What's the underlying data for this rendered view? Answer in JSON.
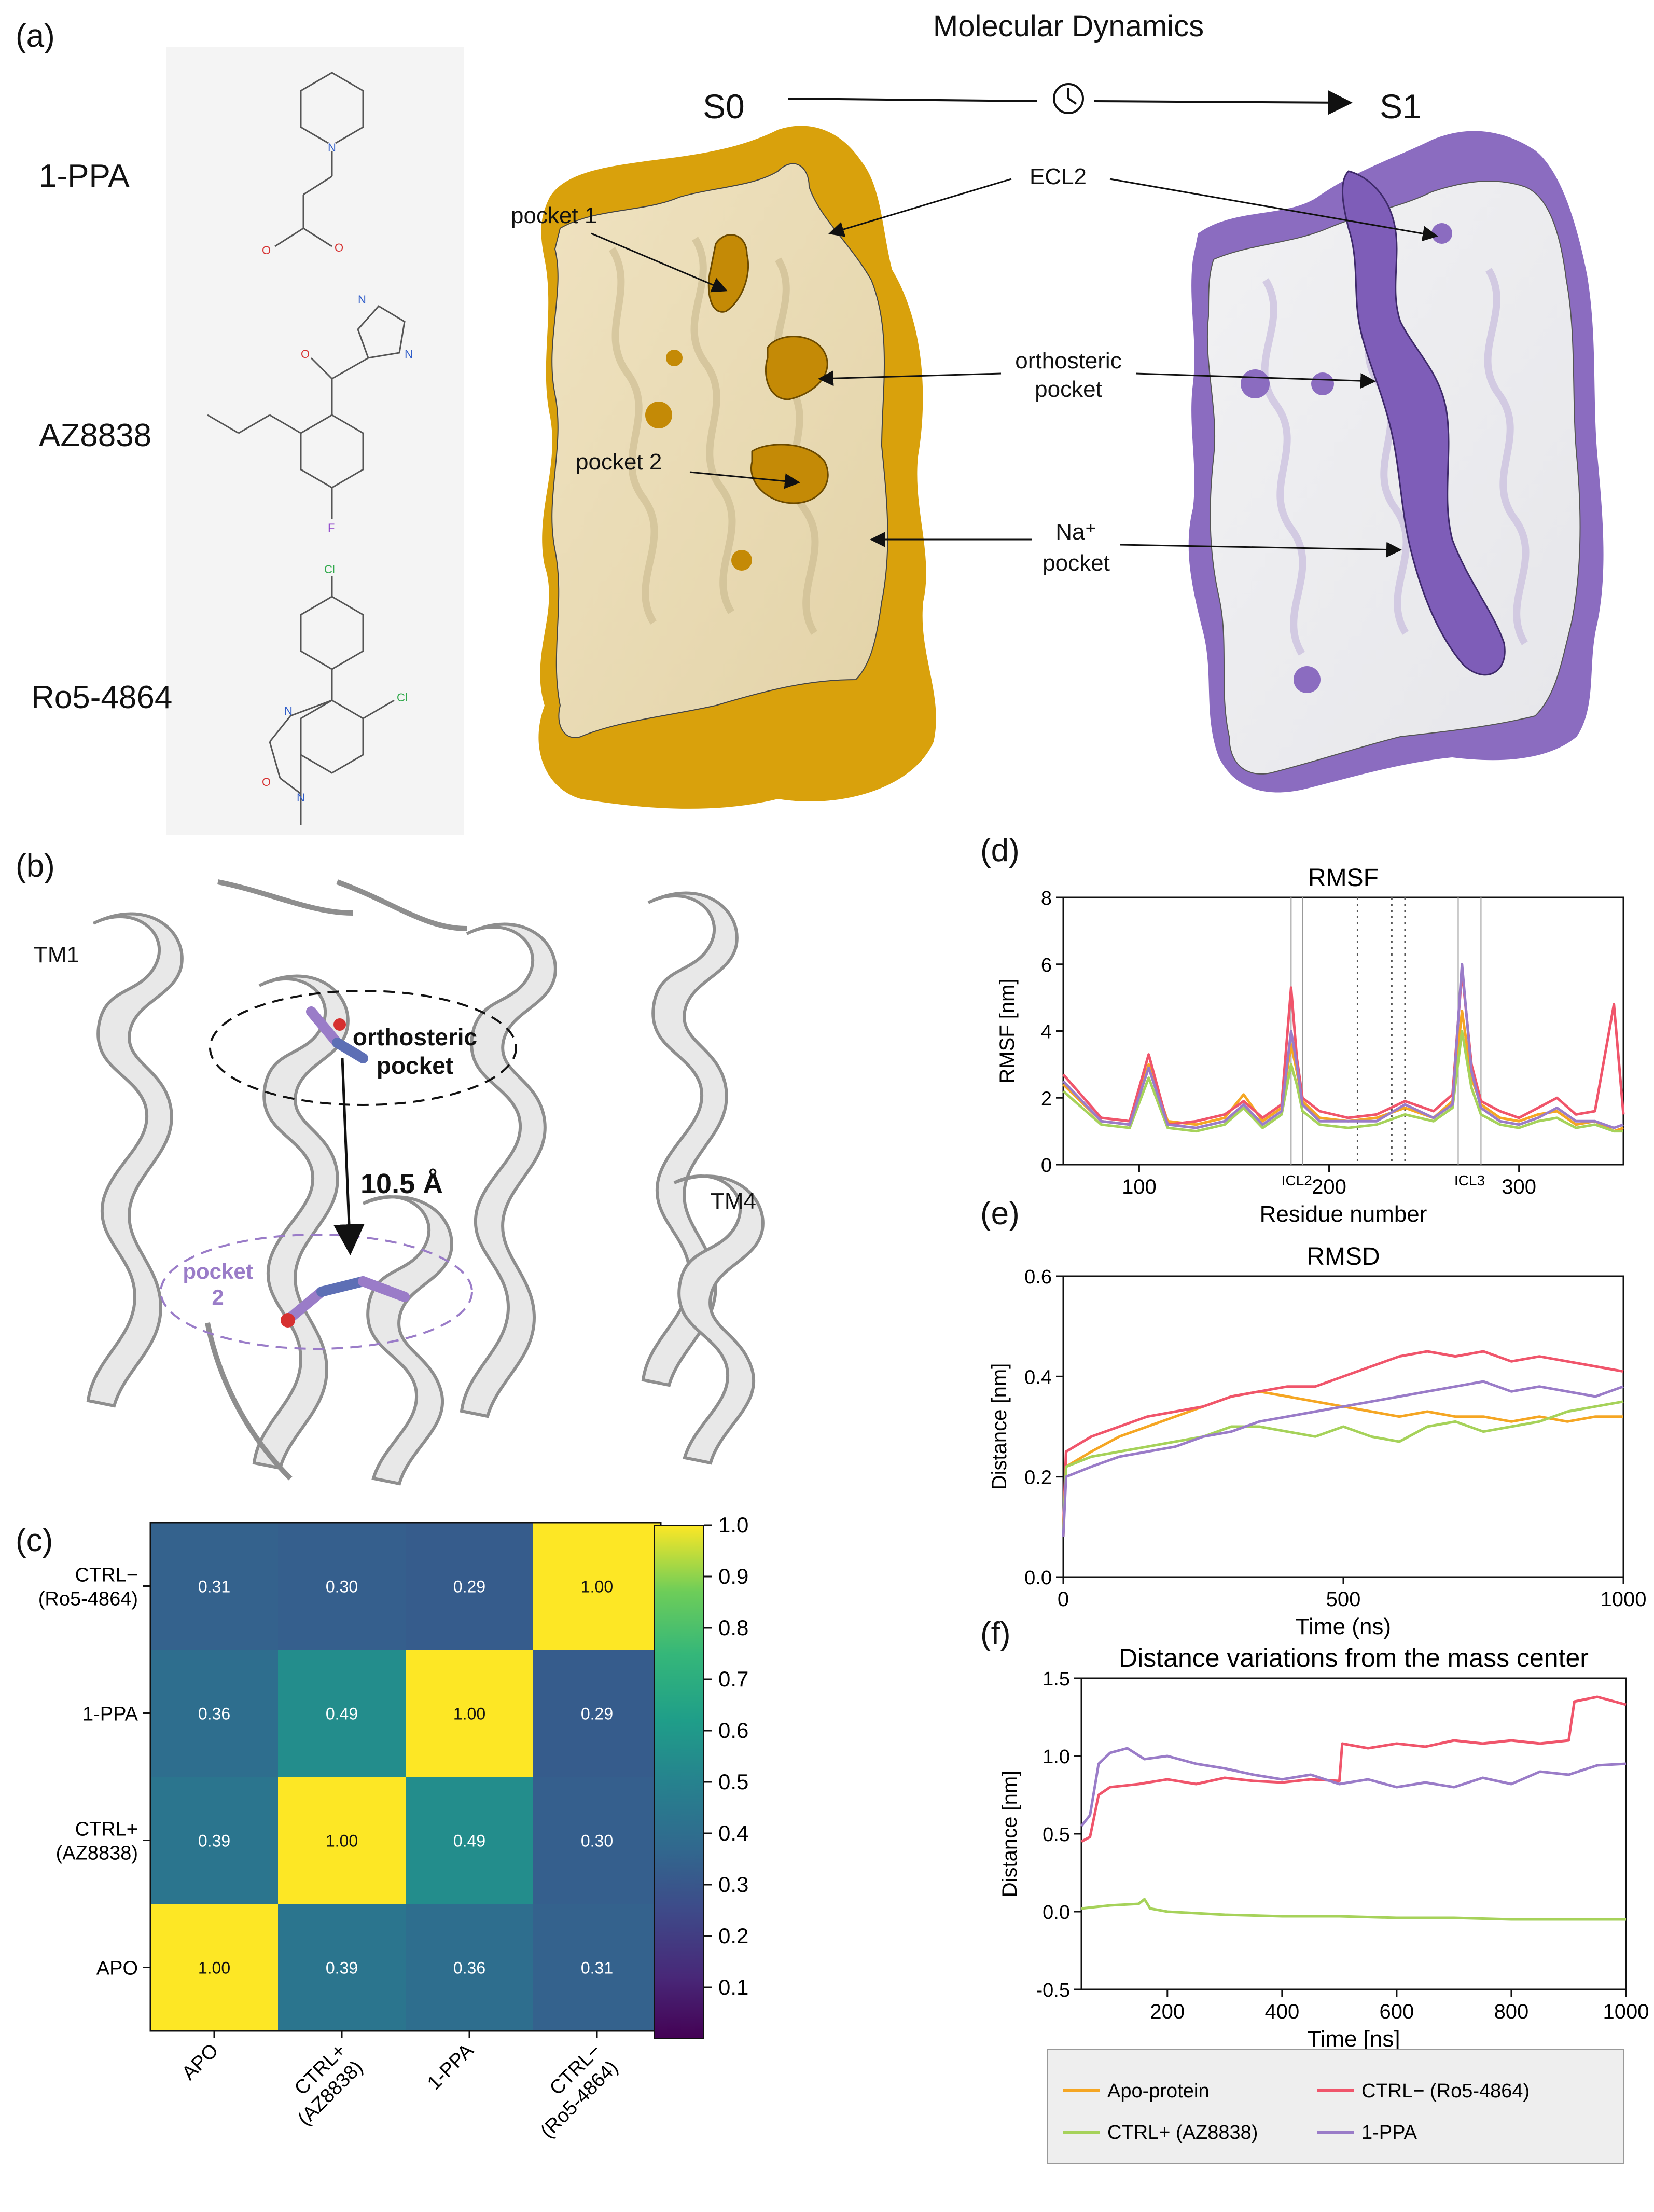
{
  "panel_a": {
    "letter": "(a)",
    "title": "Molecular Dynamics",
    "state_start": "S0",
    "state_end": "S1",
    "clock_icon": "clock-icon",
    "compounds": [
      "1-PPA",
      "AZ8838",
      "Ro5-4864"
    ],
    "s0_labels": {
      "pocket1": "pocket 1",
      "pocket2": "pocket 2"
    },
    "s1_labels": {
      "ecl2": "ECL2",
      "orthosteric": "orthosteric",
      "orthosteric2": "pocket",
      "na": "Na⁺",
      "na2": "pocket"
    },
    "colors": {
      "s0_surface": "#D9A10C",
      "s0_cut": "#EADBB5",
      "s1_surface": "#8B6CC0",
      "s1_cut": "#EDEDEF"
    }
  },
  "panel_b": {
    "letter": "(b)",
    "tm1": "TM1",
    "tm4": "TM4",
    "orthosteric_l1": "orthosteric",
    "orthosteric_l2": "pocket",
    "pocket2_l1": "pocket",
    "pocket2_l2": "2",
    "distance": "10.5 Å"
  },
  "panel_c": {
    "letter": "(c)",
    "chart_data": {
      "type": "heatmap",
      "rows": [
        "CTRL−\n(Ro5-4864)",
        "1-PPA",
        "CTRL+\n(AZ8838)",
        "APO"
      ],
      "row_labels": [
        [
          "CTRL−",
          "(Ro5-4864)"
        ],
        [
          "1-PPA"
        ],
        [
          "CTRL+",
          "(AZ8838)"
        ],
        [
          "APO"
        ]
      ],
      "col_labels": [
        [
          "APO"
        ],
        [
          "CTRL+",
          "(AZ8838)"
        ],
        [
          "1-PPA"
        ],
        [
          "CTRL−",
          "(Ro5-4864)"
        ]
      ],
      "values": [
        [
          0.31,
          0.3,
          0.29,
          1.0
        ],
        [
          0.36,
          0.49,
          1.0,
          0.29
        ],
        [
          0.39,
          1.0,
          0.49,
          0.3
        ],
        [
          1.0,
          0.39,
          0.36,
          0.31
        ]
      ],
      "colorbar_ticks": [
        "1.0",
        "0.9",
        "0.8",
        "0.7",
        "0.6",
        "0.5",
        "0.4",
        "0.3",
        "0.2",
        "0.1"
      ],
      "colormap": "viridis",
      "vmin": 0.0,
      "vmax": 1.0
    }
  },
  "panel_d": {
    "letter": "(d)",
    "chart_data": {
      "type": "line",
      "title": "RMSF",
      "xlabel": "Residue number",
      "ylabel": "RMSF [nm]",
      "xlim": [
        60,
        355
      ],
      "ylim": [
        0,
        8
      ],
      "xticks": [
        100,
        200,
        300
      ],
      "yticks": [
        0,
        2,
        4,
        6,
        8
      ],
      "annotations": [
        "ICL2",
        "ICL3"
      ],
      "solid_vlines": [
        180,
        186,
        268,
        280
      ],
      "dotted_vlines": [
        215,
        233,
        240
      ],
      "series": [
        {
          "name": "Apo-protein",
          "color": "#F5A623",
          "x": [
            60,
            80,
            95,
            105,
            115,
            130,
            145,
            155,
            165,
            175,
            180,
            183,
            186,
            195,
            210,
            225,
            240,
            255,
            265,
            270,
            275,
            280,
            290,
            300,
            310,
            320,
            330,
            340,
            350,
            355
          ],
          "y": [
            2.4,
            1.3,
            1.2,
            3.0,
            1.3,
            1.2,
            1.4,
            2.1,
            1.3,
            1.7,
            3.6,
            2.8,
            1.9,
            1.4,
            1.3,
            1.4,
            1.7,
            1.4,
            1.9,
            4.6,
            2.6,
            1.8,
            1.4,
            1.3,
            1.5,
            1.6,
            1.2,
            1.3,
            1.0,
            1.1
          ]
        },
        {
          "name": "CTRL− (Ro5-4864)",
          "color": "#F0556B",
          "x": [
            60,
            80,
            95,
            105,
            115,
            130,
            145,
            155,
            165,
            175,
            180,
            183,
            186,
            195,
            210,
            225,
            240,
            255,
            265,
            270,
            275,
            280,
            290,
            300,
            310,
            320,
            330,
            340,
            350,
            355
          ],
          "y": [
            2.7,
            1.4,
            1.3,
            3.3,
            1.2,
            1.3,
            1.5,
            1.9,
            1.4,
            1.8,
            5.3,
            3.2,
            2.0,
            1.6,
            1.4,
            1.5,
            1.9,
            1.6,
            2.1,
            5.8,
            3.0,
            1.9,
            1.6,
            1.4,
            1.7,
            2.0,
            1.5,
            1.6,
            4.8,
            1.5
          ]
        },
        {
          "name": "CTRL+ (AZ8838)",
          "color": "#A6D25A",
          "x": [
            60,
            80,
            95,
            105,
            115,
            130,
            145,
            155,
            165,
            175,
            180,
            183,
            186,
            195,
            210,
            225,
            240,
            255,
            265,
            270,
            275,
            280,
            290,
            300,
            310,
            320,
            330,
            340,
            350,
            355
          ],
          "y": [
            2.2,
            1.2,
            1.1,
            2.6,
            1.1,
            1.0,
            1.2,
            1.7,
            1.1,
            1.5,
            3.0,
            2.4,
            1.6,
            1.2,
            1.1,
            1.2,
            1.5,
            1.3,
            1.7,
            4.0,
            2.3,
            1.5,
            1.2,
            1.1,
            1.3,
            1.4,
            1.1,
            1.2,
            1.0,
            1.0
          ]
        },
        {
          "name": "1-PPA",
          "color": "#9A7CC8",
          "x": [
            60,
            80,
            95,
            105,
            115,
            130,
            145,
            155,
            165,
            175,
            180,
            183,
            186,
            195,
            210,
            225,
            240,
            255,
            265,
            270,
            275,
            280,
            290,
            300,
            310,
            320,
            330,
            340,
            350,
            355
          ],
          "y": [
            2.5,
            1.3,
            1.2,
            2.9,
            1.2,
            1.1,
            1.3,
            1.8,
            1.2,
            1.6,
            4.0,
            3.0,
            1.8,
            1.3,
            1.3,
            1.3,
            1.8,
            1.4,
            1.8,
            6.0,
            2.8,
            1.7,
            1.3,
            1.2,
            1.4,
            1.7,
            1.3,
            1.3,
            1.1,
            1.2
          ]
        }
      ]
    }
  },
  "panel_e": {
    "letter": "(e)",
    "chart_data": {
      "type": "line",
      "title": "RMSD",
      "xlabel": "Time (ns)",
      "ylabel": "Distance [nm]",
      "xlim": [
        0,
        1000
      ],
      "ylim": [
        0,
        0.6
      ],
      "xticks": [
        0,
        500,
        1000
      ],
      "yticks": [
        "0.0",
        "0.2",
        "0.4",
        "0.6"
      ],
      "series": [
        {
          "name": "Apo-protein",
          "color": "#F5A623",
          "x": [
            0,
            5,
            50,
            100,
            150,
            200,
            250,
            300,
            350,
            400,
            450,
            500,
            550,
            600,
            650,
            700,
            750,
            800,
            850,
            900,
            950,
            1000
          ],
          "y": [
            0.08,
            0.22,
            0.25,
            0.28,
            0.3,
            0.32,
            0.34,
            0.36,
            0.37,
            0.36,
            0.35,
            0.34,
            0.33,
            0.32,
            0.33,
            0.32,
            0.32,
            0.31,
            0.32,
            0.31,
            0.32,
            0.32
          ]
        },
        {
          "name": "CTRL− (Ro5-4864)",
          "color": "#F0556B",
          "x": [
            0,
            5,
            50,
            100,
            150,
            200,
            250,
            300,
            350,
            400,
            450,
            500,
            550,
            600,
            650,
            700,
            750,
            800,
            850,
            900,
            950,
            1000
          ],
          "y": [
            0.1,
            0.25,
            0.28,
            0.3,
            0.32,
            0.33,
            0.34,
            0.36,
            0.37,
            0.38,
            0.38,
            0.4,
            0.42,
            0.44,
            0.45,
            0.44,
            0.45,
            0.43,
            0.44,
            0.43,
            0.42,
            0.41
          ]
        },
        {
          "name": "CTRL+ (AZ8838)",
          "color": "#A6D25A",
          "x": [
            0,
            5,
            50,
            100,
            150,
            200,
            250,
            300,
            350,
            400,
            450,
            500,
            550,
            600,
            650,
            700,
            750,
            800,
            850,
            900,
            950,
            1000
          ],
          "y": [
            0.09,
            0.22,
            0.24,
            0.25,
            0.26,
            0.27,
            0.28,
            0.3,
            0.3,
            0.29,
            0.28,
            0.3,
            0.28,
            0.27,
            0.3,
            0.31,
            0.29,
            0.3,
            0.31,
            0.33,
            0.34,
            0.35
          ]
        },
        {
          "name": "1-PPA",
          "color": "#9A7CC8",
          "x": [
            0,
            5,
            50,
            100,
            150,
            200,
            250,
            300,
            350,
            400,
            450,
            500,
            550,
            600,
            650,
            700,
            750,
            800,
            850,
            900,
            950,
            1000
          ],
          "y": [
            0.08,
            0.2,
            0.22,
            0.24,
            0.25,
            0.26,
            0.28,
            0.29,
            0.31,
            0.32,
            0.33,
            0.34,
            0.35,
            0.36,
            0.37,
            0.38,
            0.39,
            0.37,
            0.38,
            0.37,
            0.36,
            0.38
          ]
        }
      ]
    }
  },
  "panel_f": {
    "letter": "(f)",
    "chart_data": {
      "type": "line",
      "title": "Distance variations from the mass center",
      "xlabel": "Time  [ns]",
      "ylabel": "Distance [nm]",
      "xlim": [
        50,
        1000
      ],
      "ylim": [
        -0.5,
        1.5
      ],
      "xticks": [
        200,
        400,
        600,
        800,
        1000
      ],
      "yticks": [
        "-0.5",
        "0.0",
        "0.5",
        "1.0",
        "1.5"
      ],
      "series": [
        {
          "name": "CTRL− (Ro5-4864)",
          "color": "#F0556B",
          "x": [
            50,
            65,
            80,
            100,
            150,
            200,
            250,
            300,
            350,
            400,
            450,
            500,
            505,
            550,
            600,
            650,
            700,
            750,
            800,
            850,
            900,
            910,
            950,
            1000
          ],
          "y": [
            0.45,
            0.48,
            0.75,
            0.8,
            0.82,
            0.85,
            0.82,
            0.86,
            0.84,
            0.83,
            0.85,
            0.84,
            1.08,
            1.05,
            1.08,
            1.06,
            1.1,
            1.08,
            1.1,
            1.08,
            1.1,
            1.35,
            1.38,
            1.33
          ]
        },
        {
          "name": "1-PPA",
          "color": "#9A7CC8",
          "x": [
            50,
            65,
            80,
            100,
            130,
            160,
            200,
            250,
            300,
            350,
            400,
            450,
            500,
            550,
            600,
            650,
            700,
            750,
            800,
            850,
            900,
            950,
            1000
          ],
          "y": [
            0.55,
            0.62,
            0.95,
            1.02,
            1.05,
            0.98,
            1.0,
            0.95,
            0.92,
            0.88,
            0.85,
            0.88,
            0.82,
            0.85,
            0.8,
            0.83,
            0.8,
            0.86,
            0.82,
            0.9,
            0.88,
            0.94,
            0.95
          ]
        },
        {
          "name": "CTRL+ (AZ8838)",
          "color": "#A6D25A",
          "x": [
            50,
            100,
            150,
            160,
            170,
            200,
            300,
            400,
            500,
            600,
            700,
            800,
            900,
            1000
          ],
          "y": [
            0.02,
            0.04,
            0.05,
            0.08,
            0.02,
            0.0,
            -0.02,
            -0.03,
            -0.03,
            -0.04,
            -0.04,
            -0.05,
            -0.05,
            -0.05
          ]
        }
      ]
    }
  },
  "legend": {
    "items": [
      {
        "label": "Apo-protein",
        "color": "#F5A623"
      },
      {
        "label": "CTRL− (Ro5-4864)",
        "color": "#F0556B"
      },
      {
        "label": "CTRL+ (AZ8838)",
        "color": "#A6D25A"
      },
      {
        "label": "1-PPA",
        "color": "#9A7CC8"
      }
    ]
  }
}
